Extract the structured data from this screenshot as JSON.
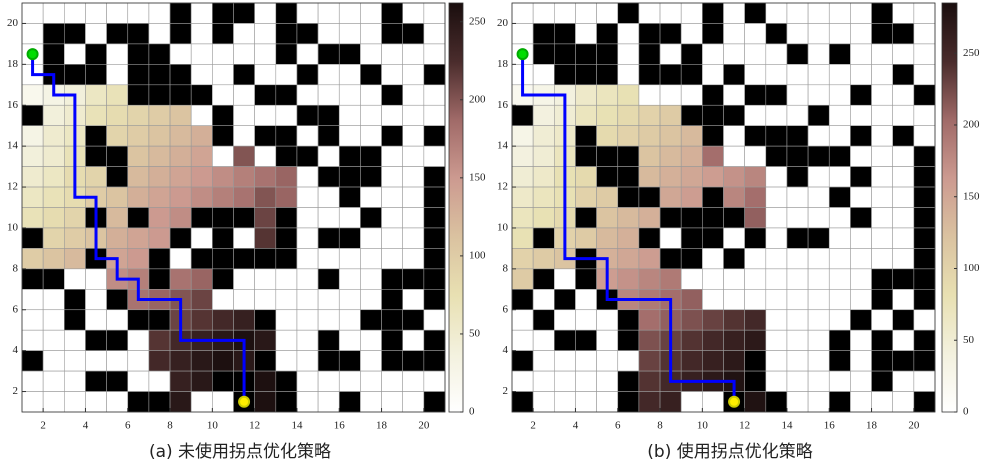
{
  "chart_data": [
    {
      "type": "heatmap",
      "caption": "(a) 未使用拐点优化策略",
      "xlim": [
        1,
        21
      ],
      "ylim": [
        1,
        21
      ],
      "xticks": [
        2,
        4,
        6,
        8,
        10,
        12,
        14,
        16,
        18,
        20
      ],
      "yticks": [
        2,
        4,
        6,
        8,
        10,
        12,
        14,
        16,
        18,
        20
      ],
      "clim": [
        0,
        262
      ],
      "cticks": [
        0,
        50,
        100,
        150,
        200,
        250
      ],
      "colormap": [
        "#ffffff",
        "#f3f1de",
        "#e8e0b2",
        "#dac2a0",
        "#cc9a90",
        "#a06a68",
        "#4a2c2c",
        "#1a0e0e"
      ],
      "missing_color": "#000000",
      "path_color": "#0000ff",
      "start_color": "#00dd00",
      "goal_color": "#ffee00",
      "z": [
        [
          0,
          0,
          0,
          0,
          0,
          0,
          0,
          null,
          0,
          null,
          null,
          0,
          null,
          0,
          0,
          0,
          0,
          null,
          0,
          0
        ],
        [
          0,
          null,
          null,
          0,
          null,
          null,
          0,
          null,
          0,
          null,
          0,
          0,
          null,
          null,
          0,
          0,
          0,
          null,
          null,
          0
        ],
        [
          0,
          null,
          0,
          null,
          0,
          null,
          null,
          0,
          0,
          0,
          0,
          0,
          null,
          0,
          null,
          null,
          0,
          0,
          0,
          0
        ],
        [
          0,
          null,
          null,
          null,
          0,
          null,
          null,
          null,
          0,
          0,
          null,
          0,
          0,
          null,
          0,
          0,
          null,
          0,
          0,
          null
        ],
        [
          20,
          30,
          40,
          60,
          70,
          null,
          null,
          null,
          null,
          0,
          0,
          null,
          null,
          0,
          0,
          0,
          0,
          null,
          0,
          0
        ],
        [
          null,
          40,
          50,
          70,
          80,
          90,
          100,
          110,
          0,
          null,
          0,
          0,
          0,
          null,
          null,
          0,
          0,
          0,
          0,
          0
        ],
        [
          30,
          50,
          60,
          null,
          90,
          100,
          110,
          120,
          130,
          null,
          0,
          null,
          null,
          0,
          null,
          0,
          0,
          null,
          0,
          null
        ],
        [
          40,
          50,
          70,
          null,
          null,
          110,
          120,
          130,
          140,
          0,
          200,
          0,
          null,
          null,
          0,
          null,
          null,
          0,
          0,
          0
        ],
        [
          50,
          60,
          80,
          90,
          null,
          120,
          130,
          140,
          150,
          160,
          170,
          180,
          190,
          0,
          null,
          null,
          null,
          0,
          0,
          null
        ],
        [
          60,
          70,
          80,
          100,
          110,
          130,
          140,
          150,
          160,
          170,
          180,
          200,
          190,
          0,
          0,
          null,
          0,
          0,
          0,
          null
        ],
        [
          70,
          80,
          90,
          null,
          120,
          null,
          150,
          160,
          null,
          null,
          null,
          210,
          null,
          0,
          0,
          0,
          null,
          0,
          0,
          null
        ],
        [
          null,
          90,
          100,
          110,
          130,
          140,
          150,
          null,
          0,
          null,
          0,
          220,
          null,
          0,
          null,
          null,
          0,
          0,
          0,
          null
        ],
        [
          100,
          110,
          120,
          null,
          140,
          150,
          null,
          0,
          null,
          null,
          null,
          null,
          null,
          0,
          0,
          0,
          0,
          0,
          0,
          null
        ],
        [
          null,
          null,
          0,
          0,
          160,
          170,
          null,
          180,
          190,
          null,
          0,
          0,
          0,
          0,
          null,
          0,
          0,
          null,
          null,
          null
        ],
        [
          0,
          0,
          null,
          0,
          null,
          180,
          190,
          200,
          210,
          0,
          0,
          0,
          0,
          0,
          0,
          0,
          0,
          null,
          0,
          null
        ],
        [
          0,
          0,
          null,
          0,
          0,
          null,
          null,
          210,
          220,
          230,
          240,
          null,
          0,
          0,
          0,
          0,
          null,
          null,
          null,
          0
        ],
        [
          0,
          0,
          0,
          null,
          null,
          0,
          220,
          230,
          240,
          250,
          260,
          250,
          0,
          0,
          null,
          0,
          0,
          null,
          0,
          null
        ],
        [
          null,
          0,
          0,
          0,
          0,
          0,
          230,
          240,
          250,
          260,
          250,
          null,
          0,
          0,
          null,
          null,
          0,
          null,
          null,
          null
        ],
        [
          0,
          0,
          0,
          null,
          null,
          0,
          0,
          240,
          250,
          null,
          null,
          260,
          null,
          0,
          0,
          0,
          0,
          0,
          0,
          0
        ],
        [
          0,
          0,
          0,
          0,
          0,
          null,
          null,
          250,
          0,
          0,
          null,
          260,
          null,
          0,
          0,
          null,
          0,
          0,
          0,
          null
        ]
      ],
      "path": {
        "x": [
          1.5,
          1.5,
          2.5,
          2.5,
          3.5,
          3.5,
          4.5,
          4.5,
          5.5,
          5.5,
          6.5,
          6.5,
          8.5,
          8.5,
          11.5,
          11.5
        ],
        "y": [
          18.5,
          17.5,
          17.5,
          16.5,
          16.5,
          11.5,
          11.5,
          8.5,
          8.5,
          7.5,
          7.5,
          6.5,
          6.5,
          4.5,
          4.5,
          1.5
        ]
      },
      "start": [
        1.5,
        18.5
      ],
      "goal": [
        11.5,
        1.5
      ]
    },
    {
      "type": "heatmap",
      "caption": "(b) 使用拐点优化策略",
      "xlim": [
        1,
        21
      ],
      "ylim": [
        1,
        21
      ],
      "xticks": [
        2,
        4,
        6,
        8,
        10,
        12,
        14,
        16,
        18,
        20
      ],
      "yticks": [
        2,
        4,
        6,
        8,
        10,
        12,
        14,
        16,
        18,
        20
      ],
      "clim": [
        0,
        285
      ],
      "cticks": [
        0,
        50,
        100,
        150,
        200,
        250
      ],
      "colormap": [
        "#ffffff",
        "#f3f1de",
        "#e8e0b2",
        "#dac2a0",
        "#cc9a90",
        "#a06a68",
        "#4a2c2c",
        "#1a0e0e"
      ],
      "missing_color": "#000000",
      "path_color": "#0000ff",
      "start_color": "#00dd00",
      "goal_color": "#ffee00",
      "z": [
        [
          0,
          0,
          0,
          0,
          0,
          null,
          0,
          0,
          0,
          null,
          0,
          null,
          0,
          0,
          0,
          0,
          0,
          null,
          0,
          0
        ],
        [
          0,
          null,
          null,
          0,
          null,
          0,
          null,
          null,
          0,
          null,
          0,
          0,
          null,
          0,
          0,
          0,
          0,
          null,
          null,
          0
        ],
        [
          0,
          null,
          null,
          null,
          null,
          0,
          null,
          0,
          null,
          0,
          0,
          0,
          0,
          null,
          0,
          null,
          0,
          0,
          0,
          0
        ],
        [
          0,
          0,
          null,
          null,
          null,
          0,
          null,
          null,
          null,
          0,
          null,
          0,
          0,
          0,
          0,
          0,
          0,
          0,
          null,
          0
        ],
        [
          20,
          30,
          40,
          60,
          70,
          80,
          0,
          0,
          0,
          null,
          0,
          null,
          null,
          0,
          0,
          0,
          null,
          0,
          0,
          null
        ],
        [
          null,
          40,
          50,
          70,
          80,
          90,
          100,
          110,
          null,
          null,
          null,
          0,
          0,
          0,
          null,
          0,
          0,
          0,
          0,
          0
        ],
        [
          30,
          50,
          60,
          null,
          90,
          100,
          110,
          120,
          130,
          null,
          0,
          null,
          null,
          null,
          0,
          0,
          null,
          0,
          null,
          0
        ],
        [
          40,
          50,
          70,
          null,
          null,
          null,
          120,
          130,
          140,
          200,
          0,
          0,
          null,
          null,
          null,
          null,
          0,
          0,
          0,
          null
        ],
        [
          50,
          60,
          80,
          90,
          null,
          null,
          130,
          140,
          150,
          160,
          170,
          180,
          0,
          null,
          0,
          0,
          null,
          0,
          0,
          null
        ],
        [
          60,
          70,
          80,
          100,
          110,
          null,
          null,
          150,
          160,
          null,
          180,
          200,
          0,
          0,
          0,
          null,
          0,
          0,
          0,
          null
        ],
        [
          70,
          80,
          90,
          null,
          120,
          130,
          140,
          null,
          null,
          null,
          null,
          210,
          0,
          0,
          0,
          0,
          null,
          0,
          0,
          null
        ],
        [
          80,
          null,
          100,
          110,
          130,
          140,
          null,
          0,
          null,
          null,
          0,
          null,
          0,
          null,
          null,
          0,
          0,
          0,
          0,
          null
        ],
        [
          100,
          110,
          120,
          null,
          140,
          150,
          160,
          null,
          null,
          0,
          null,
          0,
          0,
          0,
          0,
          0,
          0,
          0,
          0,
          null
        ],
        [
          110,
          null,
          0,
          null,
          160,
          170,
          180,
          190,
          0,
          0,
          0,
          0,
          0,
          0,
          0,
          0,
          0,
          null,
          null,
          null
        ],
        [
          null,
          0,
          null,
          0,
          null,
          180,
          190,
          200,
          210,
          0,
          0,
          0,
          0,
          0,
          0,
          0,
          0,
          null,
          0,
          null
        ],
        [
          0,
          null,
          0,
          0,
          0,
          null,
          200,
          210,
          220,
          230,
          240,
          250,
          0,
          0,
          0,
          0,
          null,
          0,
          null,
          0
        ],
        [
          0,
          0,
          null,
          null,
          0,
          null,
          220,
          230,
          240,
          250,
          260,
          270,
          0,
          0,
          0,
          null,
          0,
          null,
          0,
          null
        ],
        [
          null,
          0,
          0,
          0,
          0,
          0,
          230,
          240,
          250,
          260,
          270,
          null,
          0,
          0,
          0,
          null,
          0,
          null,
          null,
          null
        ],
        [
          0,
          0,
          0,
          0,
          0,
          null,
          240,
          250,
          260,
          270,
          280,
          null,
          0,
          0,
          0,
          0,
          0,
          null,
          0,
          0
        ],
        [
          null,
          0,
          0,
          0,
          0,
          null,
          250,
          260,
          0,
          0,
          null,
          280,
          null,
          0,
          0,
          null,
          0,
          0,
          0,
          null
        ]
      ],
      "path": {
        "x": [
          1.5,
          1.5,
          3.5,
          3.5,
          5.5,
          5.5,
          8.5,
          8.5,
          11.5,
          11.5
        ],
        "y": [
          18.5,
          16.5,
          16.5,
          8.5,
          8.5,
          6.5,
          6.5,
          2.5,
          2.5,
          1.5
        ]
      },
      "start": [
        1.5,
        18.5
      ],
      "goal": [
        11.5,
        1.5
      ]
    }
  ]
}
